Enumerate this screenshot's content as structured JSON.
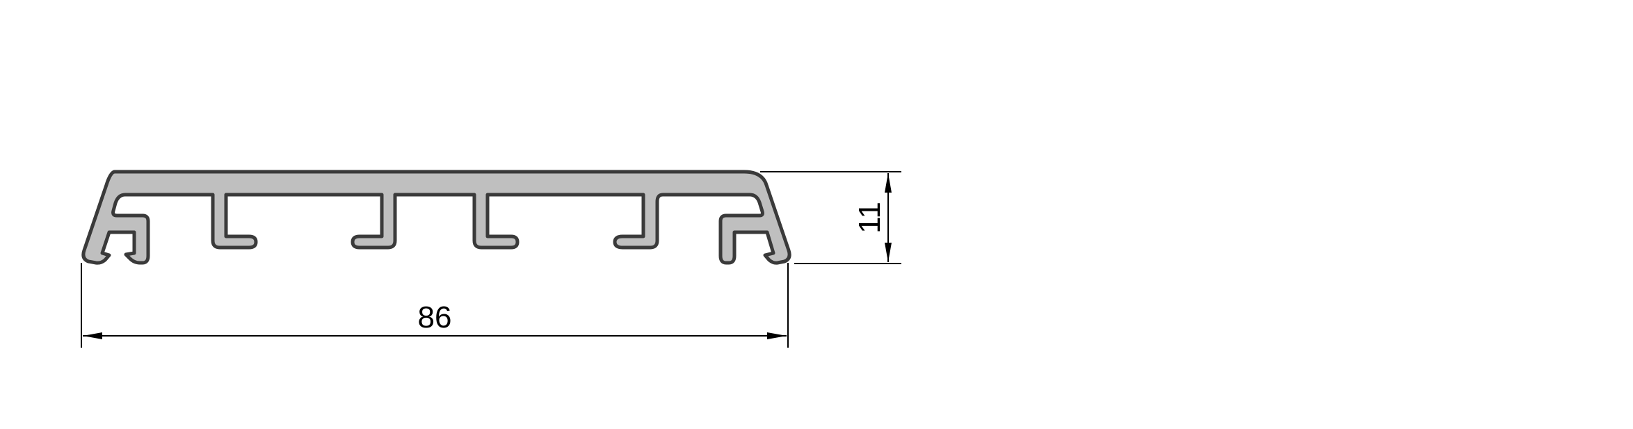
{
  "drawing": {
    "profile_fill": "#bfbfbf",
    "profile_stroke": "#3a3a3a",
    "dimension_color": "#000000",
    "dimensions": {
      "width_label": "86",
      "height_label": "11"
    }
  }
}
